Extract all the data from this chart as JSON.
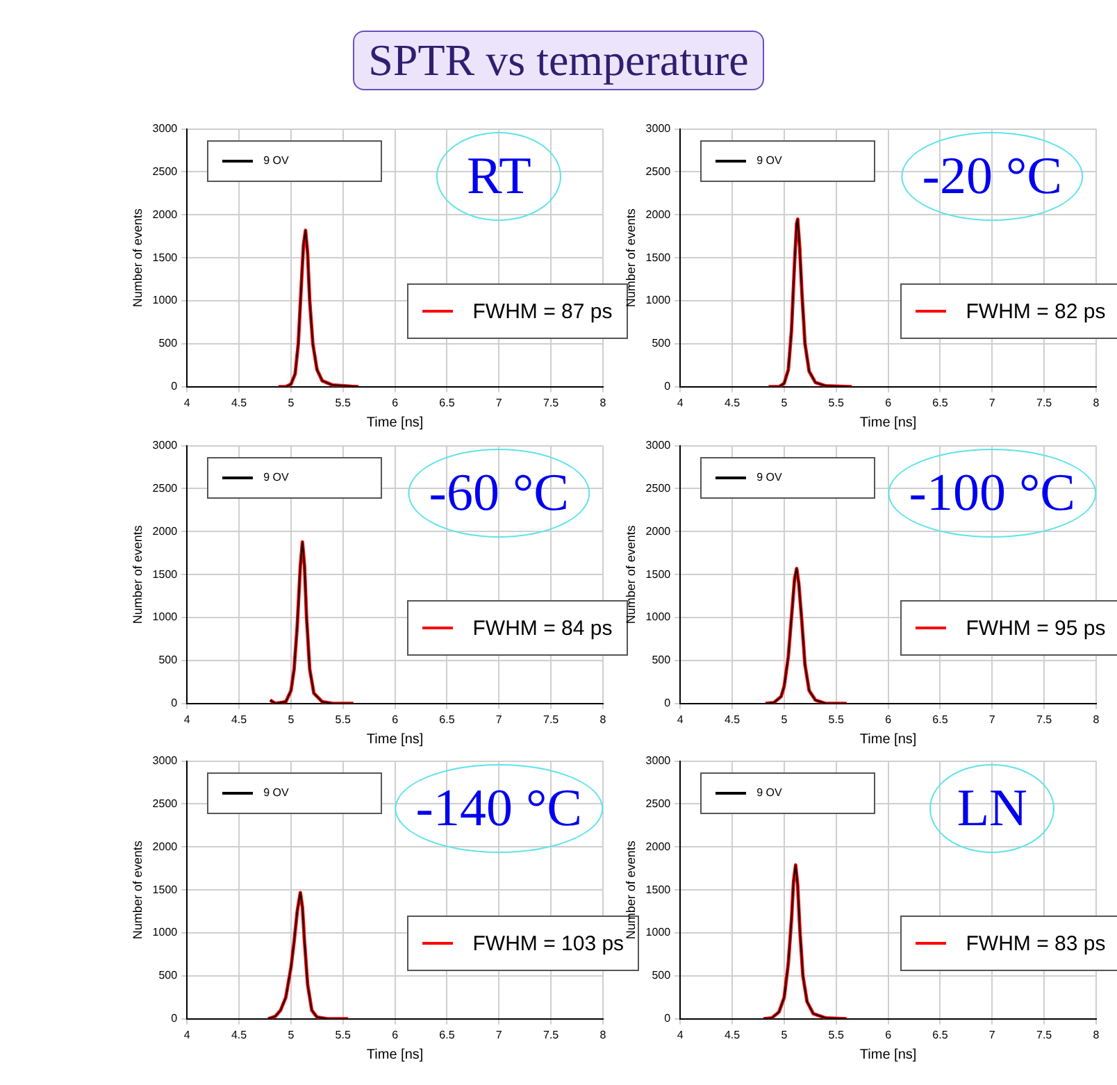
{
  "chart_data": [
    {
      "type": "line",
      "title": "SPTR vs temperature",
      "xlabel": "Time [ns]",
      "ylabel": "Number of events",
      "annotations": [
        "RT"
      ],
      "legend": "top right",
      "grid": true,
      "marker": "none",
      "line_style": "solid",
      "xlim": [
        4,
        8
      ],
      "ylim": [
        0,
        3000
      ],
      "xticks": [
        4,
        4.5,
        5,
        5.5,
        6,
        6.5,
        7,
        7.5,
        8
      ],
      "yticks": [
        0,
        500,
        1000,
        1500,
        2000,
        2500,
        3000
      ],
      "x": [
        4.88,
        4.95,
        5.0,
        5.04,
        5.07,
        5.1,
        5.12,
        5.14,
        5.16,
        5.18,
        5.21,
        5.25,
        5.3,
        5.4,
        5.65
      ],
      "series": [
        {
          "name": "9 OV",
          "color": "#000000",
          "values": [
            0,
            0,
            30,
            150,
            500,
            1200,
            1650,
            1820,
            1550,
            1000,
            500,
            200,
            70,
            20,
            0
          ]
        },
        {
          "name": "FWHM = 87 ps",
          "color": "#ff0000",
          "values": [
            0,
            0,
            30,
            150,
            500,
            1200,
            1650,
            1820,
            1550,
            1000,
            500,
            200,
            70,
            20,
            0
          ]
        }
      ]
    },
    {
      "type": "line",
      "xlabel": "Time [ns]",
      "ylabel": "Number of events",
      "annotations": [
        "-20 °C"
      ],
      "legend": "top right",
      "grid": true,
      "marker": "none",
      "line_style": "solid",
      "xlim": [
        4,
        8
      ],
      "ylim": [
        0,
        3000
      ],
      "xticks": [
        4,
        4.5,
        5,
        5.5,
        6,
        6.5,
        7,
        7.5,
        8
      ],
      "yticks": [
        0,
        500,
        1000,
        1500,
        2000,
        2500,
        3000
      ],
      "x": [
        4.85,
        4.95,
        5.0,
        5.04,
        5.07,
        5.1,
        5.12,
        5.13,
        5.15,
        5.17,
        5.2,
        5.24,
        5.3,
        5.4,
        5.65
      ],
      "series": [
        {
          "name": "9 OV",
          "color": "#000000",
          "values": [
            0,
            0,
            40,
            200,
            650,
            1450,
            1900,
            1950,
            1600,
            1100,
            500,
            180,
            50,
            10,
            0
          ]
        },
        {
          "name": "FWHM = 82 ps",
          "color": "#ff0000",
          "values": [
            0,
            0,
            40,
            200,
            650,
            1450,
            1900,
            1950,
            1600,
            1100,
            500,
            180,
            50,
            10,
            0
          ]
        }
      ]
    },
    {
      "type": "line",
      "xlabel": "Time [ns]",
      "ylabel": "Number of events",
      "annotations": [
        "-60 °C"
      ],
      "legend": "top right",
      "grid": true,
      "marker": "none",
      "line_style": "solid",
      "xlim": [
        4,
        8
      ],
      "ylim": [
        0,
        3000
      ],
      "xticks": [
        4,
        4.5,
        5,
        5.5,
        6,
        6.5,
        7,
        7.5,
        8
      ],
      "yticks": [
        0,
        500,
        1000,
        1500,
        2000,
        2500,
        3000
      ],
      "x": [
        4.8,
        4.85,
        4.95,
        5.0,
        5.03,
        5.06,
        5.09,
        5.11,
        5.13,
        5.15,
        5.18,
        5.22,
        5.3,
        5.4,
        5.6
      ],
      "series": [
        {
          "name": "9 OV",
          "color": "#000000",
          "values": [
            40,
            0,
            20,
            150,
            400,
            900,
            1600,
            1880,
            1600,
            1000,
            400,
            120,
            20,
            0,
            0
          ]
        },
        {
          "name": "FWHM = 84 ps",
          "color": "#ff0000",
          "values": [
            40,
            0,
            20,
            150,
            400,
            900,
            1600,
            1880,
            1600,
            1000,
            400,
            120,
            20,
            0,
            0
          ]
        }
      ]
    },
    {
      "type": "line",
      "xlabel": "Time [ns]",
      "ylabel": "Number of events",
      "annotations": [
        "-100 °C"
      ],
      "legend": "top right",
      "grid": true,
      "marker": "none",
      "line_style": "solid",
      "xlim": [
        4,
        8
      ],
      "ylim": [
        0,
        3000
      ],
      "xticks": [
        4,
        4.5,
        5,
        5.5,
        6,
        6.5,
        7,
        7.5,
        8
      ],
      "yticks": [
        0,
        500,
        1000,
        1500,
        2000,
        2500,
        3000
      ],
      "x": [
        4.82,
        4.9,
        4.97,
        5.0,
        5.04,
        5.07,
        5.1,
        5.12,
        5.14,
        5.17,
        5.2,
        5.24,
        5.3,
        5.4,
        5.6
      ],
      "series": [
        {
          "name": "9 OV",
          "color": "#000000",
          "values": [
            0,
            10,
            80,
            200,
            550,
            1000,
            1450,
            1570,
            1400,
            950,
            450,
            150,
            40,
            0,
            0
          ]
        },
        {
          "name": "FWHM = 95 ps",
          "color": "#ff0000",
          "values": [
            0,
            10,
            80,
            200,
            550,
            1000,
            1450,
            1570,
            1400,
            950,
            450,
            150,
            40,
            0,
            0
          ]
        }
      ]
    },
    {
      "type": "line",
      "xlabel": "Time [ns]",
      "ylabel": "Number of events",
      "annotations": [
        "-140 °C"
      ],
      "legend": "top right",
      "grid": true,
      "marker": "none",
      "line_style": "solid",
      "xlim": [
        4,
        8
      ],
      "ylim": [
        0,
        3000
      ],
      "xticks": [
        4,
        4.5,
        5,
        5.5,
        6,
        6.5,
        7,
        7.5,
        8
      ],
      "yticks": [
        0,
        500,
        1000,
        1500,
        2000,
        2500,
        3000
      ],
      "x": [
        4.78,
        4.85,
        4.9,
        4.95,
        5.0,
        5.03,
        5.06,
        5.09,
        5.11,
        5.13,
        5.16,
        5.2,
        5.25,
        5.35,
        5.55
      ],
      "series": [
        {
          "name": "9 OV",
          "color": "#000000",
          "values": [
            0,
            30,
            100,
            250,
            600,
            900,
            1250,
            1470,
            1300,
            900,
            400,
            100,
            20,
            0,
            0
          ]
        },
        {
          "name": "FWHM = 103 ps",
          "color": "#ff0000",
          "values": [
            0,
            30,
            100,
            250,
            600,
            900,
            1250,
            1470,
            1300,
            900,
            400,
            100,
            20,
            0,
            0
          ]
        }
      ]
    },
    {
      "type": "line",
      "xlabel": "Time [ns]",
      "ylabel": "Number of events",
      "annotations": [
        "LN"
      ],
      "legend": "top right",
      "grid": true,
      "marker": "none",
      "line_style": "solid",
      "xlim": [
        4,
        8
      ],
      "ylim": [
        0,
        3000
      ],
      "xticks": [
        4,
        4.5,
        5,
        5.5,
        6,
        6.5,
        7,
        7.5,
        8
      ],
      "yticks": [
        0,
        500,
        1000,
        1500,
        2000,
        2500,
        3000
      ],
      "x": [
        4.8,
        4.88,
        4.95,
        5.0,
        5.04,
        5.07,
        5.09,
        5.11,
        5.13,
        5.15,
        5.18,
        5.22,
        5.28,
        5.4,
        5.6
      ],
      "series": [
        {
          "name": "9 OV",
          "color": "#000000",
          "values": [
            0,
            10,
            80,
            250,
            650,
            1150,
            1600,
            1790,
            1550,
            1050,
            500,
            200,
            60,
            10,
            0
          ]
        },
        {
          "name": "FWHM = 83 ps",
          "color": "#ff0000",
          "values": [
            0,
            10,
            80,
            250,
            650,
            1150,
            1600,
            1790,
            1550,
            1050,
            500,
            200,
            60,
            10,
            0
          ]
        }
      ]
    }
  ]
}
